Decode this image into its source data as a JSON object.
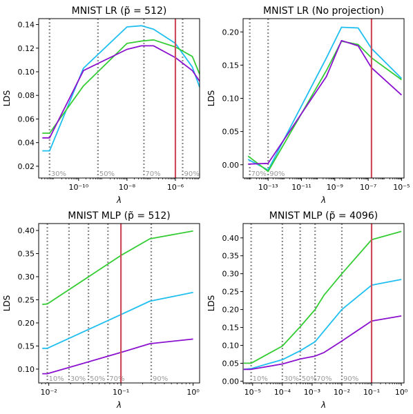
{
  "colors": {
    "cyan": "#1ebff0",
    "green": "#33cc33",
    "purple": "#8a0fcf",
    "red_line": "#cc4c5c",
    "dotted": "#888888",
    "pct_text": "#999999"
  },
  "chart_data": [
    {
      "type": "line",
      "title": "MNIST LR (p̃ = 512)",
      "xlabel": "λ",
      "ylabel": "LDS",
      "xscale": "log",
      "xlim_log10": [
        -11.65,
        -5.0
      ],
      "ylim": [
        0.01,
        0.145
      ],
      "xticks": [
        {
          "exp": -10,
          "label": "10⁻¹⁰"
        },
        {
          "exp": -8,
          "label": "10⁻⁸"
        },
        {
          "exp": -6,
          "label": "10⁻⁶"
        }
      ],
      "yticks": [
        {
          "v": 0.02,
          "label": "0.02"
        },
        {
          "v": 0.04,
          "label": "0.04"
        },
        {
          "v": 0.06,
          "label": "0.06"
        },
        {
          "v": 0.08,
          "label": "0.08"
        },
        {
          "v": 0.1,
          "label": "0.10"
        },
        {
          "v": 0.12,
          "label": "0.12"
        },
        {
          "v": 0.14,
          "label": "0.14"
        }
      ],
      "x_log10": [
        -11.5,
        -11.2,
        -9.8,
        -8.0,
        -7.4,
        -6.9,
        -6.0,
        -5.3,
        -5.0
      ],
      "series": [
        {
          "color": "cyan",
          "values": [
            0.033,
            0.033,
            0.103,
            0.138,
            0.139,
            0.136,
            0.124,
            0.104,
            0.087
          ]
        },
        {
          "color": "green",
          "values": [
            0.048,
            0.048,
            0.088,
            0.124,
            0.126,
            0.127,
            0.121,
            0.113,
            0.098
          ]
        },
        {
          "color": "purple",
          "values": [
            0.044,
            0.044,
            0.101,
            0.119,
            0.122,
            0.122,
            0.112,
            0.101,
            0.092
          ]
        }
      ],
      "dotted_lines": [
        {
          "x_log10": -11.2,
          "label": "30%"
        },
        {
          "x_log10": -9.2,
          "label": "50%"
        },
        {
          "x_log10": -7.3,
          "label": "70%"
        },
        {
          "x_log10": -5.7,
          "label": "90%"
        }
      ],
      "red_line_x_log10": -6.0
    },
    {
      "type": "line",
      "title": "MNIST LR (No projection)",
      "xlabel": "λ",
      "ylabel": "LDS",
      "xscale": "log",
      "xlim_log10": [
        -14.5,
        -4.85
      ],
      "ylim": [
        -0.02,
        0.22
      ],
      "xticks": [
        {
          "exp": -13,
          "label": "10⁻¹³"
        },
        {
          "exp": -11,
          "label": "10⁻¹¹"
        },
        {
          "exp": -9,
          "label": "10⁻⁹"
        },
        {
          "exp": -7,
          "label": "10⁻⁷"
        },
        {
          "exp": -5,
          "label": "10⁻⁵"
        }
      ],
      "yticks": [
        {
          "v": 0.0,
          "label": "0.00"
        },
        {
          "v": 0.05,
          "label": "0.05"
        },
        {
          "v": 0.1,
          "label": "0.10"
        },
        {
          "v": 0.15,
          "label": "0.15"
        },
        {
          "v": 0.2,
          "label": "0.20"
        }
      ],
      "x_log10": [
        -14.2,
        -13.0,
        -9.5,
        -8.6,
        -7.6,
        -6.8,
        -5.0
      ],
      "series": [
        {
          "color": "cyan",
          "values": [
            0.008,
            -0.008,
            0.161,
            0.207,
            0.206,
            0.175,
            0.13
          ]
        },
        {
          "color": "green",
          "values": [
            0.013,
            -0.01,
            0.142,
            0.186,
            0.181,
            0.161,
            0.128
          ]
        },
        {
          "color": "purple",
          "values": [
            0.001,
            0.002,
            0.133,
            0.187,
            0.179,
            0.146,
            0.105
          ]
        }
      ],
      "dotted_lines": [
        {
          "x_log10": -14.1,
          "label": "70%"
        },
        {
          "x_log10": -13.0,
          "label": "90%"
        }
      ],
      "red_line_x_log10": -6.8
    },
    {
      "type": "line",
      "title": "MNIST MLP (p̃ = 512)",
      "xlabel": "λ",
      "ylabel": "LDS",
      "xscale": "log",
      "xlim_log10": [
        -2.14,
        0.09
      ],
      "ylim": [
        0.07,
        0.415
      ],
      "xticks": [
        {
          "exp": -2,
          "label": "10⁻²"
        },
        {
          "exp": -1,
          "label": "10⁻¹"
        },
        {
          "exp": 0,
          "label": "10⁰"
        }
      ],
      "yticks": [
        {
          "v": 0.1,
          "label": "0.10"
        },
        {
          "v": 0.15,
          "label": "0.15"
        },
        {
          "v": 0.2,
          "label": "0.20"
        },
        {
          "v": 0.25,
          "label": "0.25"
        },
        {
          "v": 0.3,
          "label": "0.30"
        },
        {
          "v": 0.35,
          "label": "0.35"
        },
        {
          "v": 0.4,
          "label": "0.40"
        }
      ],
      "x_log10": [
        -2.09,
        -2.02,
        -1.0,
        -0.6,
        0.0
      ],
      "series": [
        {
          "color": "green",
          "values": [
            0.24,
            0.241,
            0.346,
            0.382,
            0.399
          ]
        },
        {
          "color": "cyan",
          "values": [
            0.145,
            0.145,
            0.218,
            0.247,
            0.266
          ]
        },
        {
          "color": "purple",
          "values": [
            0.09,
            0.09,
            0.136,
            0.155,
            0.165
          ]
        }
      ],
      "dotted_lines": [
        {
          "x_log10": -2.02,
          "label": "10%"
        },
        {
          "x_log10": -1.72,
          "label": "30%"
        },
        {
          "x_log10": -1.45,
          "label": "50%"
        },
        {
          "x_log10": -1.18,
          "label": "70%"
        },
        {
          "x_log10": -0.58,
          "label": "90%"
        }
      ],
      "red_line_x_log10": -1.0
    },
    {
      "type": "line",
      "title": "MNIST MLP (p̃ = 4096)",
      "xlabel": "λ",
      "ylabel": "LDS",
      "xscale": "log",
      "xlim_log10": [
        -5.32,
        0.09
      ],
      "ylim": [
        -0.005,
        0.44
      ],
      "xticks": [
        {
          "exp": -5,
          "label": "10⁻⁵"
        },
        {
          "exp": -4,
          "label": "10⁻⁴"
        },
        {
          "exp": -3,
          "label": "10⁻³"
        },
        {
          "exp": -2,
          "label": "10⁻²"
        },
        {
          "exp": -1,
          "label": "10⁻¹"
        },
        {
          "exp": 0,
          "label": "10⁰"
        }
      ],
      "yticks": [
        {
          "v": 0.0,
          "label": "0.00"
        },
        {
          "v": 0.05,
          "label": "0.05"
        },
        {
          "v": 0.1,
          "label": "0.10"
        },
        {
          "v": 0.15,
          "label": "0.15"
        },
        {
          "v": 0.2,
          "label": "0.20"
        },
        {
          "v": 0.25,
          "label": "0.25"
        },
        {
          "v": 0.3,
          "label": "0.30"
        },
        {
          "v": 0.35,
          "label": "0.35"
        },
        {
          "v": 0.4,
          "label": "0.40"
        }
      ],
      "x_log10": [
        -5.3,
        -5.05,
        -4.0,
        -3.4,
        -2.9,
        -2.6,
        -2.0,
        -1.0,
        0.0
      ],
      "series": [
        {
          "color": "green",
          "values": [
            0.05,
            0.05,
            0.098,
            0.152,
            0.2,
            0.24,
            0.3,
            0.395,
            0.418
          ]
        },
        {
          "color": "cyan",
          "values": [
            0.033,
            0.035,
            0.06,
            0.085,
            0.11,
            0.14,
            0.2,
            0.268,
            0.284
          ]
        },
        {
          "color": "purple",
          "values": [
            0.033,
            0.033,
            0.048,
            0.062,
            0.07,
            0.08,
            0.112,
            0.168,
            0.182
          ]
        }
      ],
      "dotted_lines": [
        {
          "x_log10": -5.05,
          "label": "10%"
        },
        {
          "x_log10": -4.0,
          "label": "30%"
        },
        {
          "x_log10": -3.4,
          "label": "50%"
        },
        {
          "x_log10": -2.9,
          "label": "70%"
        },
        {
          "x_log10": -2.0,
          "label": "90%"
        }
      ],
      "red_line_x_log10": -1.0
    }
  ]
}
